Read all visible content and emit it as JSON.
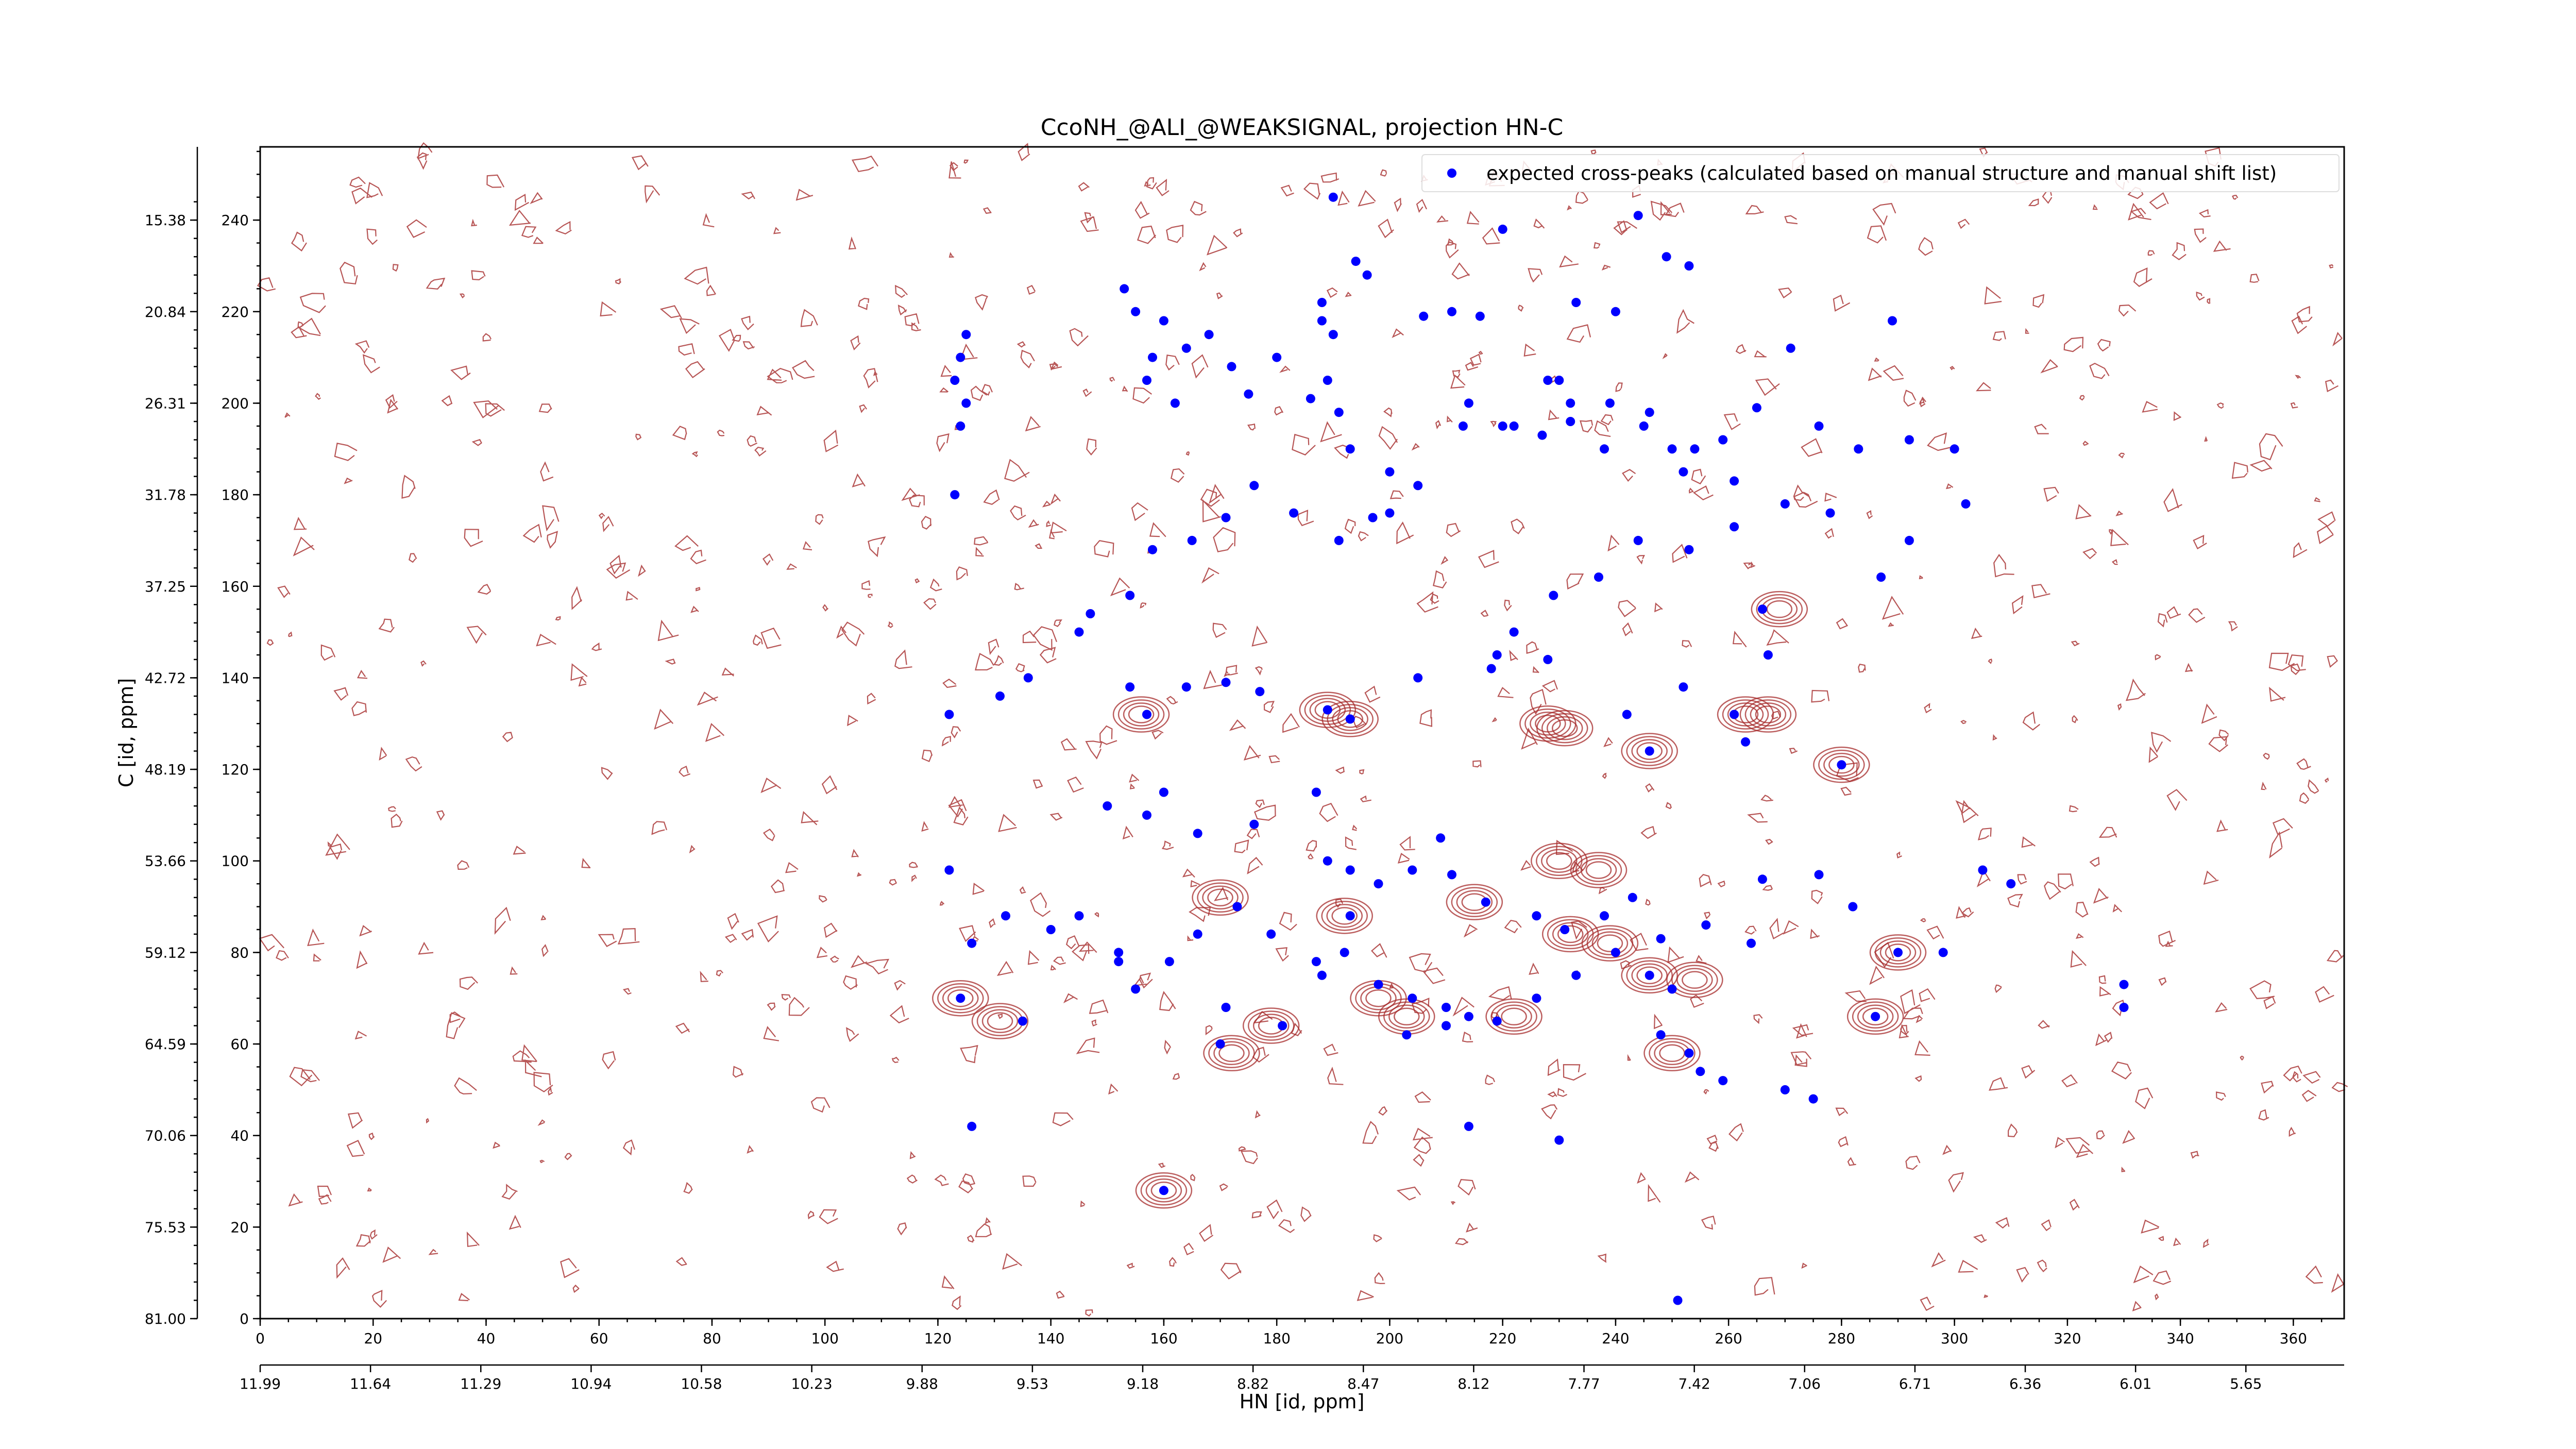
{
  "chart_data": {
    "type": "scatter",
    "title": "CcoNH_@ALI_@WEAKSIGNAL, projection HN-C",
    "xlabel": "HN [id, ppm]",
    "ylabel": "C [id, ppm]",
    "xlim": [
      0,
      369
    ],
    "ylim": [
      0,
      256
    ],
    "x_ticks_index": [
      "0",
      "20",
      "40",
      "60",
      "80",
      "100",
      "120",
      "140",
      "160",
      "180",
      "200",
      "220",
      "240",
      "260",
      "280",
      "300",
      "320",
      "340",
      "360"
    ],
    "x_ticks_ppm": [
      "11.99",
      "11.64",
      "11.29",
      "10.94",
      "10.58",
      "10.23",
      "9.88",
      "9.53",
      "9.18",
      "8.82",
      "8.47",
      "8.12",
      "7.77",
      "7.42",
      "7.06",
      "6.71",
      "6.36",
      "6.01",
      "5.65"
    ],
    "y_ticks_index": [
      "0",
      "20",
      "40",
      "60",
      "80",
      "100",
      "120",
      "140",
      "160",
      "180",
      "200",
      "220",
      "240"
    ],
    "y_ticks_ppm": [
      "81.00",
      "75.53",
      "70.06",
      "64.59",
      "59.12",
      "53.66",
      "48.19",
      "42.72",
      "37.25",
      "31.78",
      "26.31",
      "20.84",
      "15.38"
    ],
    "legend": {
      "label": "expected cross-peaks (calculated based on manual structure and manual shift list)",
      "position": "top-right"
    },
    "colors": {
      "peaks": "#0000ff",
      "contours": "#a52a2a",
      "axis": "#000000"
    },
    "grid": false,
    "series": [
      {
        "name": "expected cross-peaks (calculated based on manual structure and manual shift list)",
        "points": [
          [
            125,
            215
          ],
          [
            124,
            210
          ],
          [
            123,
            205
          ],
          [
            125,
            200
          ],
          [
            124,
            195
          ],
          [
            123,
            180
          ],
          [
            153,
            225
          ],
          [
            155,
            220
          ],
          [
            160,
            218
          ],
          [
            164,
            212
          ],
          [
            158,
            210
          ],
          [
            157,
            205
          ],
          [
            162,
            200
          ],
          [
            168,
            215
          ],
          [
            172,
            208
          ],
          [
            175,
            202
          ],
          [
            180,
            210
          ],
          [
            188,
            222
          ],
          [
            190,
            215
          ],
          [
            189,
            205
          ],
          [
            191,
            198
          ],
          [
            193,
            190
          ],
          [
            200,
            185
          ],
          [
            205,
            182
          ],
          [
            211,
            220
          ],
          [
            216,
            219
          ],
          [
            214,
            200
          ],
          [
            213,
            195
          ],
          [
            220,
            195
          ],
          [
            230,
            205
          ],
          [
            232,
            200
          ],
          [
            238,
            190
          ],
          [
            245,
            195
          ],
          [
            250,
            190
          ],
          [
            252,
            185
          ],
          [
            259,
            192
          ],
          [
            265,
            199
          ],
          [
            271,
            212
          ],
          [
            276,
            195
          ],
          [
            283,
            190
          ],
          [
            289,
            218
          ],
          [
            292,
            192
          ],
          [
            300,
            190
          ],
          [
            302,
            178
          ],
          [
            292,
            170
          ],
          [
            287,
            162
          ],
          [
            270,
            178
          ],
          [
            261,
            173
          ],
          [
            253,
            168
          ],
          [
            244,
            170
          ],
          [
            237,
            162
          ],
          [
            229,
            158
          ],
          [
            222,
            150
          ],
          [
            219,
            145
          ],
          [
            200,
            176
          ],
          [
            197,
            175
          ],
          [
            191,
            170
          ],
          [
            183,
            176
          ],
          [
            176,
            182
          ],
          [
            171,
            175
          ],
          [
            165,
            170
          ],
          [
            158,
            168
          ],
          [
            154,
            158
          ],
          [
            147,
            154
          ],
          [
            145,
            150
          ],
          [
            136,
            140
          ],
          [
            131,
            136
          ],
          [
            122,
            132
          ],
          [
            154,
            138
          ],
          [
            157,
            132
          ],
          [
            164,
            138
          ],
          [
            171,
            139
          ],
          [
            177,
            137
          ],
          [
            189,
            133
          ],
          [
            193,
            131
          ],
          [
            205,
            140
          ],
          [
            218,
            142
          ],
          [
            228,
            144
          ],
          [
            242,
            132
          ],
          [
            252,
            138
          ],
          [
            266,
            155
          ],
          [
            267,
            145
          ],
          [
            261,
            132
          ],
          [
            263,
            126
          ],
          [
            280,
            121
          ],
          [
            246,
            124
          ],
          [
            160,
            115
          ],
          [
            150,
            112
          ],
          [
            157,
            110
          ],
          [
            166,
            106
          ],
          [
            176,
            108
          ],
          [
            187,
            115
          ],
          [
            189,
            100
          ],
          [
            193,
            98
          ],
          [
            198,
            95
          ],
          [
            204,
            98
          ],
          [
            209,
            105
          ],
          [
            211,
            97
          ],
          [
            217,
            91
          ],
          [
            226,
            88
          ],
          [
            231,
            85
          ],
          [
            238,
            88
          ],
          [
            243,
            92
          ],
          [
            248,
            83
          ],
          [
            256,
            86
          ],
          [
            264,
            82
          ],
          [
            266,
            96
          ],
          [
            276,
            97
          ],
          [
            282,
            90
          ],
          [
            290,
            80
          ],
          [
            298,
            80
          ],
          [
            305,
            98
          ],
          [
            310,
            95
          ],
          [
            122,
            98
          ],
          [
            126,
            82
          ],
          [
            132,
            88
          ],
          [
            140,
            85
          ],
          [
            145,
            88
          ],
          [
            152,
            80
          ],
          [
            161,
            78
          ],
          [
            166,
            84
          ],
          [
            173,
            90
          ],
          [
            179,
            84
          ],
          [
            187,
            78
          ],
          [
            193,
            88
          ],
          [
            198,
            73
          ],
          [
            204,
            70
          ],
          [
            210,
            68
          ],
          [
            214,
            66
          ],
          [
            219,
            65
          ],
          [
            226,
            70
          ],
          [
            233,
            75
          ],
          [
            240,
            80
          ],
          [
            246,
            75
          ],
          [
            250,
            72
          ],
          [
            248,
            62
          ],
          [
            253,
            58
          ],
          [
            255,
            54
          ],
          [
            259,
            52
          ],
          [
            270,
            50
          ],
          [
            275,
            48
          ],
          [
            286,
            66
          ],
          [
            330,
            73
          ],
          [
            330,
            68
          ],
          [
            124,
            70
          ],
          [
            126,
            42
          ],
          [
            135,
            65
          ],
          [
            152,
            78
          ],
          [
            155,
            72
          ],
          [
            171,
            68
          ],
          [
            170,
            60
          ],
          [
            181,
            64
          ],
          [
            188,
            75
          ],
          [
            192,
            80
          ],
          [
            203,
            62
          ],
          [
            210,
            64
          ],
          [
            214,
            42
          ],
          [
            230,
            39
          ],
          [
            160,
            28
          ],
          [
            251,
            4
          ],
          [
            190,
            245
          ],
          [
            194,
            231
          ],
          [
            196,
            228
          ],
          [
            188,
            218
          ],
          [
            186,
            201
          ],
          [
            206,
            219
          ],
          [
            220,
            238
          ],
          [
            249,
            232
          ],
          [
            244,
            241
          ],
          [
            253,
            230
          ],
          [
            240,
            220
          ],
          [
            233,
            222
          ],
          [
            228,
            205
          ],
          [
            222,
            195
          ],
          [
            227,
            193
          ],
          [
            232,
            196
          ],
          [
            239,
            200
          ],
          [
            246,
            198
          ],
          [
            254,
            190
          ],
          [
            261,
            183
          ],
          [
            278,
            176
          ]
        ]
      }
    ]
  }
}
